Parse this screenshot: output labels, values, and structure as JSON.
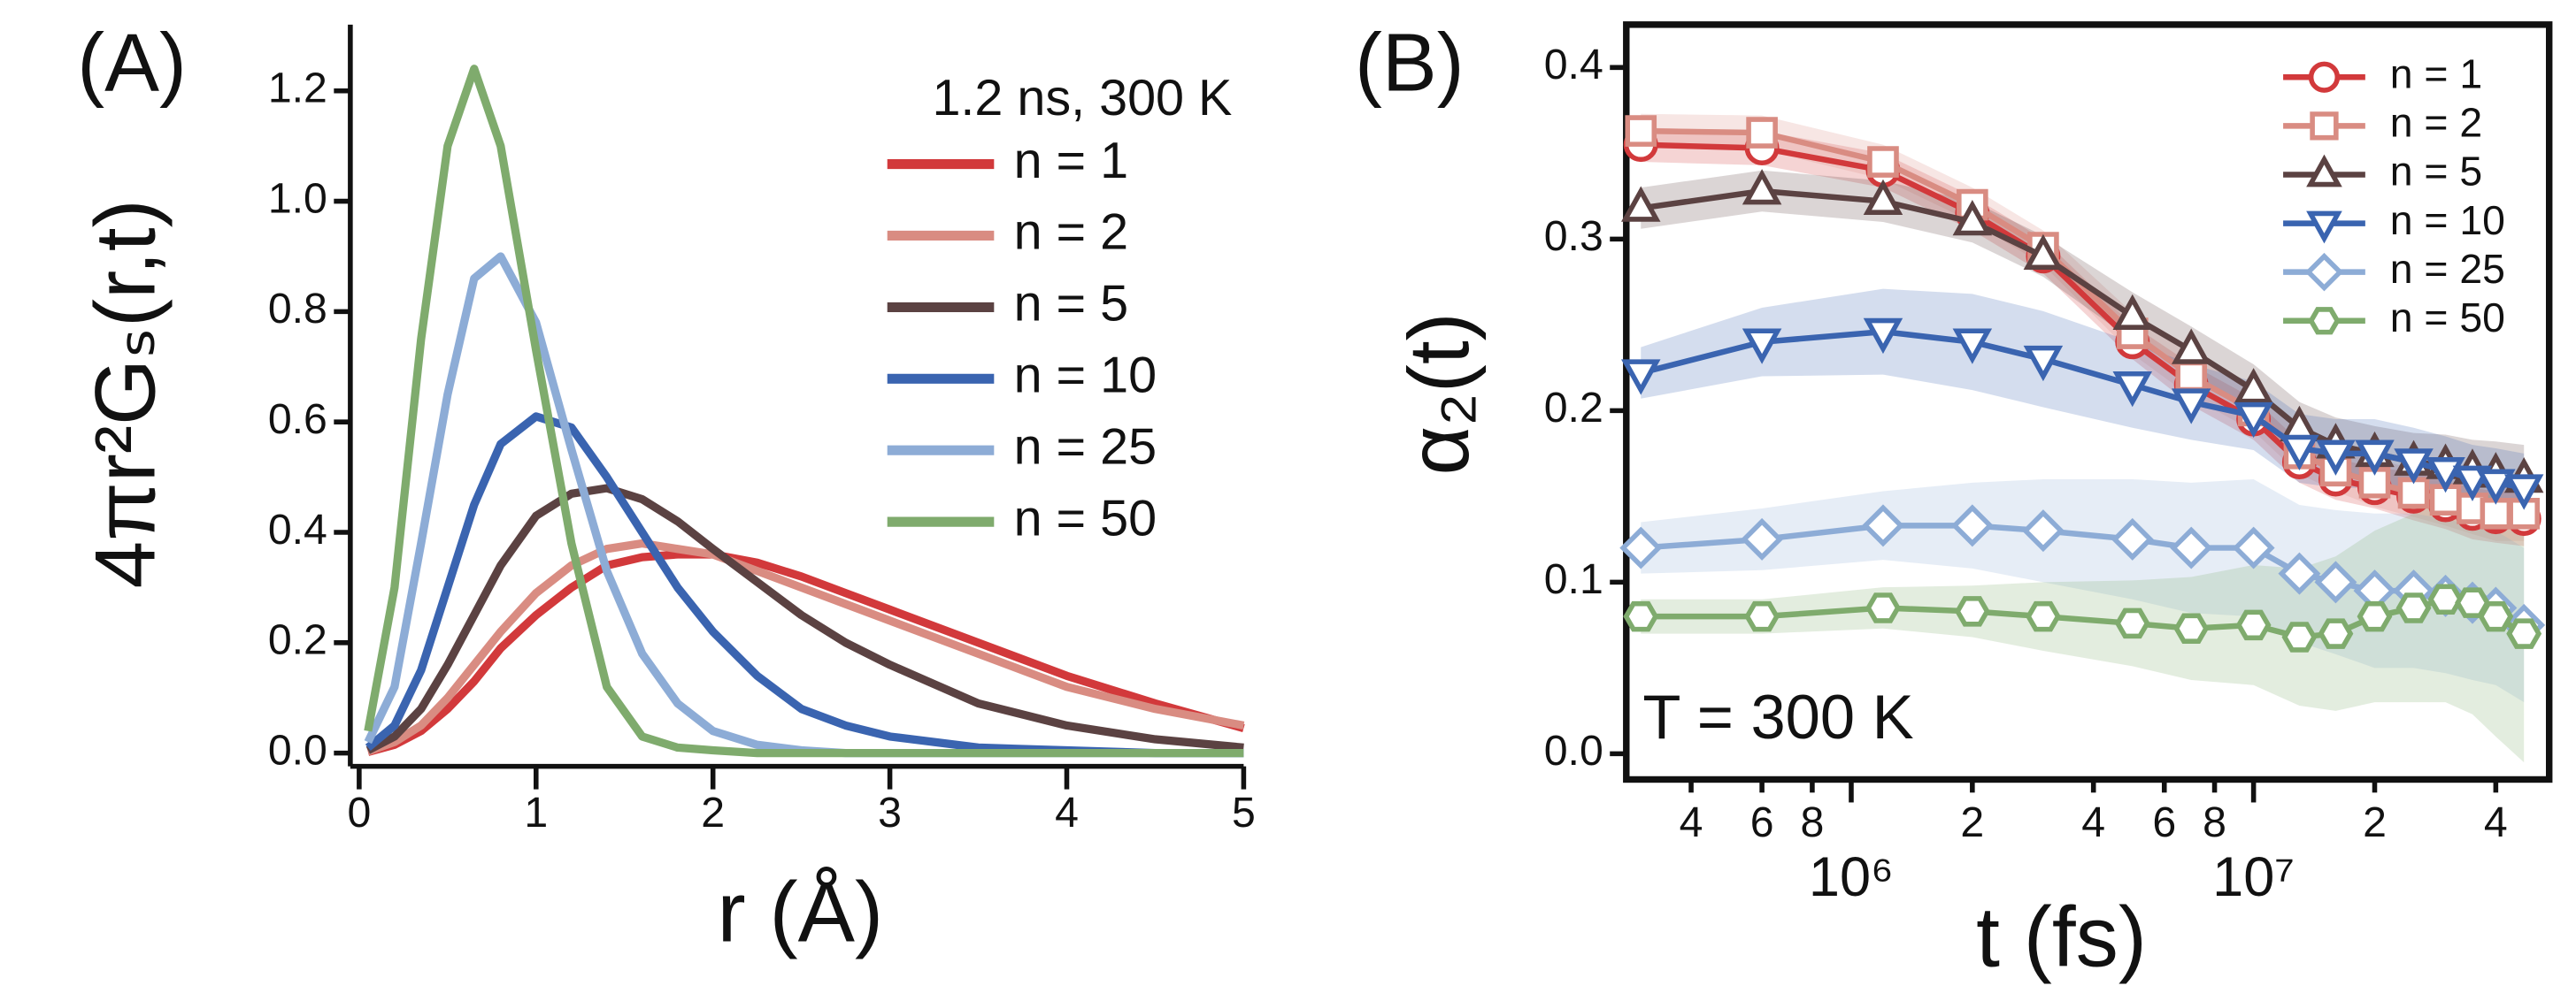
{
  "chart_data": [
    {
      "type": "line",
      "panel_label": "(A)",
      "annotation": "1.2 ns, 300 K",
      "xlabel": "r (Å)",
      "ylabel": "4πr²Gₛ(r,t)",
      "x": [
        0.05,
        0.2,
        0.35,
        0.5,
        0.65,
        0.8,
        1,
        1.2,
        1.4,
        1.6,
        1.8,
        2,
        2.25,
        2.5,
        2.75,
        3,
        3.5,
        4,
        4.5,
        5
      ],
      "xlim": [
        -0.05,
        5
      ],
      "ylim": [
        -0.024,
        1.32
      ],
      "xticks": [
        0,
        1,
        2,
        3,
        4,
        5
      ],
      "yticks": [
        {
          "value": 0,
          "label": "0.0"
        },
        {
          "value": 0.2,
          "label": "0.2"
        },
        {
          "value": 0.4,
          "label": "0.4"
        },
        {
          "value": 0.6,
          "label": "0.6"
        },
        {
          "value": 0.8,
          "label": "0.8"
        },
        {
          "value": 1,
          "label": "1.0"
        },
        {
          "value": 1.2,
          "label": "1.2"
        }
      ],
      "legend": "upper right",
      "series": [
        {
          "name": "n = 1",
          "color": "#d2393b",
          "values": [
            0.002,
            0.015,
            0.04,
            0.08,
            0.13,
            0.19,
            0.25,
            0.3,
            0.34,
            0.355,
            0.36,
            0.36,
            0.345,
            0.32,
            0.29,
            0.26,
            0.2,
            0.14,
            0.09,
            0.045
          ]
        },
        {
          "name": "n = 2",
          "color": "#d98c82",
          "values": [
            0.003,
            0.02,
            0.05,
            0.1,
            0.16,
            0.22,
            0.29,
            0.34,
            0.37,
            0.38,
            0.37,
            0.36,
            0.33,
            0.3,
            0.27,
            0.24,
            0.18,
            0.12,
            0.08,
            0.05
          ]
        },
        {
          "name": "n = 5",
          "color": "#5b4242",
          "values": [
            0.005,
            0.03,
            0.08,
            0.16,
            0.25,
            0.34,
            0.43,
            0.47,
            0.48,
            0.46,
            0.42,
            0.37,
            0.31,
            0.25,
            0.2,
            0.16,
            0.09,
            0.05,
            0.025,
            0.01
          ]
        },
        {
          "name": "n = 10",
          "color": "#3a64b0",
          "values": [
            0.01,
            0.05,
            0.15,
            0.3,
            0.45,
            0.56,
            0.61,
            0.59,
            0.5,
            0.4,
            0.3,
            0.22,
            0.14,
            0.08,
            0.05,
            0.03,
            0.01,
            0.005,
            0,
            0
          ]
        },
        {
          "name": "n = 25",
          "color": "#8dacd6",
          "values": [
            0.02,
            0.12,
            0.38,
            0.65,
            0.86,
            0.9,
            0.78,
            0.55,
            0.33,
            0.18,
            0.09,
            0.04,
            0.015,
            0.005,
            0,
            0,
            0,
            0,
            0,
            0
          ]
        },
        {
          "name": "n = 50",
          "color": "#7fab6d",
          "values": [
            0.04,
            0.3,
            0.75,
            1.1,
            1.24,
            1.1,
            0.73,
            0.38,
            0.12,
            0.03,
            0.01,
            0.005,
            0,
            0,
            0,
            0,
            0,
            0,
            0,
            0
          ]
        }
      ]
    },
    {
      "type": "line",
      "panel_label": "(B)",
      "annotation": "T = 300 K",
      "xlabel": "t (fs)",
      "ylabel": "α₂(t)",
      "xscale": "log",
      "x": [
        300000,
        600000,
        1200000,
        2000000,
        3000000,
        5000000,
        7000000,
        10000000,
        13000000,
        16000000,
        20000000,
        25000000,
        30000000,
        35000000,
        40000000,
        47000000
      ],
      "xlim": [
        276000,
        54300000
      ],
      "ylim": [
        -0.015,
        0.425
      ],
      "xticks": [
        {
          "value": 400000,
          "label": "4"
        },
        {
          "value": 600000,
          "label": "6"
        },
        {
          "value": 800000,
          "label": "8"
        },
        {
          "value": 1000000,
          "label": "10⁶"
        },
        {
          "value": 2000000,
          "label": "2"
        },
        {
          "value": 4000000,
          "label": "4"
        },
        {
          "value": 6000000,
          "label": "6"
        },
        {
          "value": 8000000,
          "label": "8"
        },
        {
          "value": 10000000,
          "label": "10⁷"
        },
        {
          "value": 20000000,
          "label": "2"
        },
        {
          "value": 40000000,
          "label": "4"
        }
      ],
      "yticks": [
        {
          "value": 0,
          "label": "0.0"
        },
        {
          "value": 0.1,
          "label": "0.1"
        },
        {
          "value": 0.2,
          "label": "0.2"
        },
        {
          "value": 0.3,
          "label": "0.3"
        },
        {
          "value": 0.4,
          "label": "0.4"
        }
      ],
      "legend": "upper right",
      "series": [
        {
          "name": "n = 1",
          "color": "#d2393b",
          "marker": "circle",
          "values": [
            0.355,
            0.353,
            0.34,
            0.315,
            0.29,
            0.24,
            0.215,
            0.195,
            0.17,
            0.16,
            0.155,
            0.15,
            0.145,
            0.14,
            0.138,
            0.137
          ],
          "errors": [
            0.01,
            0.01,
            0.01,
            0.01,
            0.01,
            0.01,
            0.012,
            0.012,
            0.012,
            0.012,
            0.012,
            0.014,
            0.014,
            0.015,
            0.015,
            0.016
          ]
        },
        {
          "name": "n = 2",
          "color": "#d98c82",
          "marker": "square",
          "values": [
            0.363,
            0.362,
            0.345,
            0.32,
            0.295,
            0.245,
            0.22,
            0.2,
            0.175,
            0.165,
            0.158,
            0.152,
            0.148,
            0.143,
            0.14,
            0.14
          ],
          "errors": [
            0.01,
            0.01,
            0.01,
            0.01,
            0.01,
            0.012,
            0.012,
            0.012,
            0.012,
            0.012,
            0.014,
            0.014,
            0.015,
            0.015,
            0.016,
            0.016
          ]
        },
        {
          "name": "n = 5",
          "color": "#5b4242",
          "marker": "triangle-up",
          "values": [
            0.318,
            0.328,
            0.322,
            0.31,
            0.29,
            0.255,
            0.235,
            0.212,
            0.19,
            0.18,
            0.175,
            0.17,
            0.168,
            0.165,
            0.163,
            0.16
          ],
          "errors": [
            0.012,
            0.012,
            0.012,
            0.012,
            0.012,
            0.014,
            0.014,
            0.015,
            0.015,
            0.016,
            0.016,
            0.017,
            0.018,
            0.018,
            0.019,
            0.02
          ]
        },
        {
          "name": "n = 10",
          "color": "#3a64b0",
          "marker": "triangle-down",
          "values": [
            0.222,
            0.24,
            0.246,
            0.24,
            0.23,
            0.215,
            0.205,
            0.197,
            0.178,
            0.175,
            0.175,
            0.17,
            0.165,
            0.16,
            0.158,
            0.155
          ],
          "errors": [
            0.015,
            0.02,
            0.025,
            0.028,
            0.028,
            0.025,
            0.022,
            0.02,
            0.02,
            0.02,
            0.02,
            0.02,
            0.02,
            0.02,
            0.02,
            0.02
          ]
        },
        {
          "name": "n = 25",
          "color": "#8dacd6",
          "marker": "diamond",
          "values": [
            0.12,
            0.125,
            0.133,
            0.133,
            0.13,
            0.125,
            0.12,
            0.12,
            0.105,
            0.1,
            0.095,
            0.095,
            0.092,
            0.088,
            0.085,
            0.075
          ],
          "errors": [
            0.015,
            0.018,
            0.02,
            0.025,
            0.03,
            0.035,
            0.038,
            0.04,
            0.04,
            0.042,
            0.045,
            0.045,
            0.045,
            0.045,
            0.045,
            0.045
          ]
        },
        {
          "name": "n = 50",
          "color": "#7fab6d",
          "marker": "hexagon",
          "values": [
            0.08,
            0.08,
            0.085,
            0.083,
            0.08,
            0.076,
            0.073,
            0.075,
            0.068,
            0.07,
            0.08,
            0.085,
            0.09,
            0.088,
            0.08,
            0.07
          ],
          "errors": [
            0.01,
            0.01,
            0.012,
            0.015,
            0.02,
            0.025,
            0.03,
            0.035,
            0.04,
            0.045,
            0.05,
            0.055,
            0.06,
            0.065,
            0.07,
            0.075
          ]
        }
      ]
    }
  ]
}
